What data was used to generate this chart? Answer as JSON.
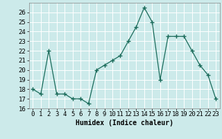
{
  "x": [
    0,
    1,
    2,
    3,
    4,
    5,
    6,
    7,
    8,
    9,
    10,
    11,
    12,
    13,
    14,
    15,
    16,
    17,
    18,
    19,
    20,
    21,
    22,
    23
  ],
  "y": [
    18,
    17.5,
    22,
    17.5,
    17.5,
    17,
    17,
    16.5,
    20,
    20.5,
    21,
    21.5,
    23,
    24.5,
    26.5,
    25,
    19,
    23.5,
    23.5,
    23.5,
    22,
    20.5,
    19.5,
    17
  ],
  "xlim": [
    -0.5,
    23.5
  ],
  "ylim": [
    16,
    27
  ],
  "yticks": [
    16,
    17,
    18,
    19,
    20,
    21,
    22,
    23,
    24,
    25,
    26
  ],
  "xtick_labels": [
    "0",
    "1",
    "2",
    "3",
    "4",
    "5",
    "6",
    "7",
    "8",
    "9",
    "10",
    "11",
    "12",
    "13",
    "14",
    "15",
    "16",
    "17",
    "18",
    "19",
    "20",
    "21",
    "22",
    "23"
  ],
  "xlabel": "Humidex (Indice chaleur)",
  "line_color": "#1a6b5a",
  "marker": "+",
  "marker_color": "#1a6b5a",
  "bg_color": "#cceaea",
  "grid_color": "#ffffff",
  "label_fontsize": 7,
  "tick_fontsize": 6.5
}
